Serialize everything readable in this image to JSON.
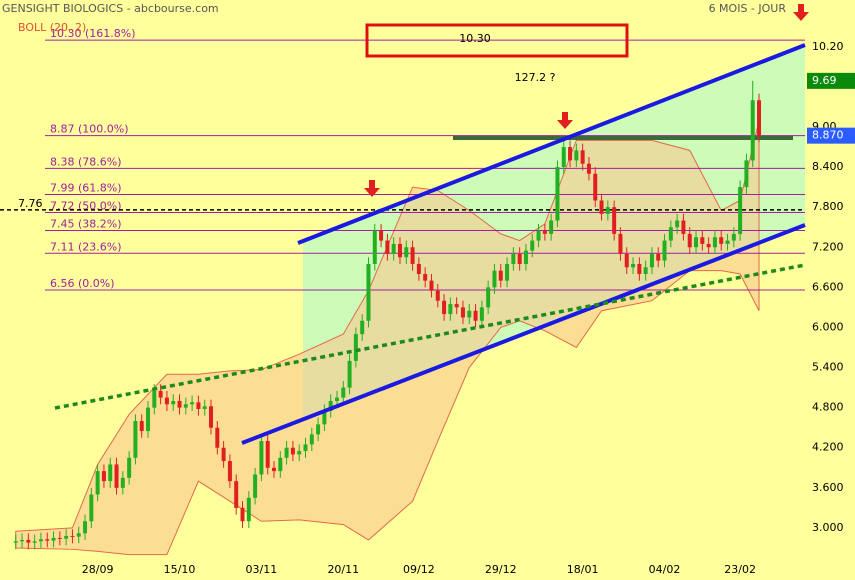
{
  "chart_data": {
    "type": "candlestick",
    "title": "GENSIGHT BIOLOGICS - abcbourse.com",
    "indicator": "BOLL (20, 2)",
    "period": "6 MOIS - JOUR",
    "box_annotation": "10.30",
    "question_annotation": "127.2 ?",
    "up_color": "#22b022",
    "down_color": "#e02020",
    "xlim": [
      -2.5,
      125.3
    ],
    "ylim": [
      2.55,
      10.9
    ],
    "xticks": [
      {
        "value": 13,
        "label": "28/09"
      },
      {
        "value": 26,
        "label": "15/10"
      },
      {
        "value": 39,
        "label": "03/11"
      },
      {
        "value": 52,
        "label": "20/11"
      },
      {
        "value": 64,
        "label": "09/12"
      },
      {
        "value": 77,
        "label": "29/12"
      },
      {
        "value": 90,
        "label": "18/01"
      },
      {
        "value": 103,
        "label": "04/02"
      },
      {
        "value": 115,
        "label": "23/02"
      }
    ],
    "yticks": [
      {
        "value": 3,
        "label": "3.000"
      },
      {
        "value": 3.6,
        "label": "3.600"
      },
      {
        "value": 4.2,
        "label": "4.200"
      },
      {
        "value": 4.8,
        "label": "4.800"
      },
      {
        "value": 5.4,
        "label": "5.400"
      },
      {
        "value": 6,
        "label": "6.000"
      },
      {
        "value": 6.6,
        "label": "6.600"
      },
      {
        "value": 7.2,
        "label": "7.200"
      },
      {
        "value": 7.8,
        "label": "7.800"
      },
      {
        "value": 8.4,
        "label": "8.400"
      },
      {
        "value": 9,
        "label": "9.00"
      },
      {
        "value": 10.2,
        "label": "10.20"
      }
    ],
    "open": [
      2.78,
      2.8,
      2.82,
      2.78,
      2.8,
      2.83,
      2.81,
      2.85,
      2.84,
      2.88,
      2.87,
      2.92,
      3.1,
      3.5,
      3.85,
      3.7,
      3.95,
      3.6,
      3.75,
      4.05,
      4.6,
      4.45,
      4.8,
      5.05,
      4.95,
      4.85,
      4.9,
      4.8,
      4.85,
      4.88,
      4.78,
      4.82,
      4.5,
      4.2,
      4.0,
      3.7,
      3.3,
      3.1,
      3.45,
      3.8,
      4.3,
      3.9,
      3.85,
      4.05,
      4.2,
      4.1,
      4.15,
      4.25,
      4.4,
      4.55,
      4.75,
      4.9,
      4.95,
      5.1,
      5.5,
      5.9,
      6.1,
      6.95,
      7.45,
      7.3,
      7.1,
      7.25,
      7.05,
      7.2,
      6.95,
      6.8,
      6.7,
      6.55,
      6.4,
      6.2,
      6.35,
      6.3,
      6.15,
      6.25,
      6.1,
      6.3,
      6.6,
      6.85,
      6.7,
      6.95,
      7.1,
      6.95,
      7.15,
      7.3,
      7.45,
      7.4,
      7.6,
      8.4,
      8.7,
      8.5,
      8.65,
      8.45,
      8.3,
      7.9,
      7.7,
      7.8,
      7.4,
      7.1,
      6.9,
      6.95,
      6.8,
      6.9,
      7.1,
      7.0,
      7.3,
      7.5,
      7.6,
      7.4,
      7.2,
      7.35,
      7.25,
      7.2,
      7.35,
      7.25,
      7.3,
      7.4,
      8.1,
      8.5,
      9.4
    ],
    "high": [
      2.9,
      2.92,
      2.92,
      2.9,
      2.93,
      2.93,
      2.95,
      2.95,
      2.98,
      2.98,
      3.02,
      3.2,
      3.6,
      3.95,
      3.95,
      4.05,
      4.05,
      3.85,
      4.15,
      4.7,
      4.7,
      4.9,
      5.15,
      5.15,
      5.05,
      5.0,
      5.0,
      4.95,
      4.98,
      4.98,
      4.92,
      4.92,
      4.6,
      4.3,
      4.1,
      3.8,
      3.4,
      3.55,
      3.9,
      4.4,
      4.4,
      4.0,
      4.15,
      4.3,
      4.3,
      4.25,
      4.35,
      4.5,
      4.65,
      4.85,
      5.0,
      5.05,
      5.2,
      5.6,
      6.0,
      6.2,
      7.05,
      7.55,
      7.55,
      7.4,
      7.35,
      7.35,
      7.3,
      7.3,
      7.05,
      6.9,
      6.8,
      6.65,
      6.5,
      6.45,
      6.45,
      6.4,
      6.35,
      6.35,
      6.4,
      6.7,
      6.95,
      6.95,
      7.05,
      7.2,
      7.2,
      7.25,
      7.4,
      7.55,
      7.55,
      7.7,
      8.5,
      8.8,
      8.8,
      8.75,
      8.75,
      8.55,
      8.4,
      8.0,
      7.9,
      7.9,
      7.5,
      7.2,
      7.05,
      7.05,
      7.0,
      7.2,
      7.2,
      7.4,
      7.6,
      7.7,
      7.7,
      7.5,
      7.45,
      7.45,
      7.35,
      7.45,
      7.45,
      7.4,
      7.5,
      8.2,
      8.6,
      9.69,
      9.5
    ],
    "low": [
      2.68,
      2.7,
      2.68,
      2.68,
      2.7,
      2.71,
      2.71,
      2.74,
      2.74,
      2.77,
      2.77,
      2.82,
      3.0,
      3.4,
      3.6,
      3.6,
      3.5,
      3.5,
      3.65,
      3.95,
      4.35,
      4.35,
      4.7,
      4.85,
      4.75,
      4.75,
      4.7,
      4.7,
      4.75,
      4.68,
      4.68,
      4.4,
      4.1,
      3.9,
      3.6,
      3.2,
      3.0,
      3.0,
      3.35,
      3.7,
      3.8,
      3.75,
      3.75,
      3.95,
      4.0,
      4.0,
      4.05,
      4.15,
      4.3,
      4.45,
      4.65,
      4.8,
      4.85,
      5.0,
      5.4,
      5.8,
      6.0,
      6.85,
      7.2,
      7.0,
      7.0,
      6.95,
      6.95,
      6.85,
      6.7,
      6.6,
      6.45,
      6.3,
      6.1,
      6.1,
      6.2,
      6.05,
      6.05,
      6.0,
      6.0,
      6.2,
      6.5,
      6.6,
      6.6,
      6.85,
      6.85,
      6.85,
      7.05,
      7.2,
      7.3,
      7.3,
      7.5,
      8.3,
      8.4,
      8.4,
      8.35,
      8.2,
      7.8,
      7.6,
      7.6,
      7.3,
      7.0,
      6.8,
      6.8,
      6.7,
      6.7,
      6.8,
      6.9,
      6.9,
      7.2,
      7.4,
      7.3,
      7.1,
      7.1,
      7.15,
      7.1,
      7.1,
      7.15,
      7.15,
      7.2,
      7.3,
      8.0,
      8.4,
      8.77
    ],
    "close": [
      2.8,
      2.82,
      2.78,
      2.8,
      2.83,
      2.81,
      2.85,
      2.84,
      2.88,
      2.87,
      2.92,
      3.1,
      3.5,
      3.85,
      3.7,
      3.95,
      3.6,
      3.75,
      4.05,
      4.6,
      4.45,
      4.8,
      5.05,
      4.95,
      4.85,
      4.9,
      4.8,
      4.85,
      4.88,
      4.78,
      4.82,
      4.5,
      4.2,
      4.0,
      3.7,
      3.3,
      3.1,
      3.45,
      3.8,
      4.3,
      3.9,
      3.85,
      4.05,
      4.2,
      4.1,
      4.15,
      4.25,
      4.4,
      4.55,
      4.75,
      4.9,
      4.95,
      5.1,
      5.5,
      5.9,
      6.1,
      6.95,
      7.45,
      7.3,
      7.1,
      7.25,
      7.05,
      7.2,
      6.95,
      6.8,
      6.7,
      6.55,
      6.4,
      6.2,
      6.35,
      6.3,
      6.15,
      6.25,
      6.1,
      6.3,
      6.6,
      6.85,
      6.7,
      6.95,
      7.1,
      6.95,
      7.15,
      7.3,
      7.45,
      7.4,
      7.6,
      8.4,
      8.7,
      8.5,
      8.65,
      8.45,
      8.3,
      7.9,
      7.7,
      7.8,
      7.4,
      7.1,
      6.9,
      6.95,
      6.8,
      6.9,
      7.1,
      7.0,
      7.3,
      7.5,
      7.6,
      7.4,
      7.2,
      7.35,
      7.25,
      7.2,
      7.35,
      7.25,
      7.3,
      7.4,
      8.1,
      8.5,
      9.4,
      8.87
    ],
    "bollinger": {
      "color": "#f8c890",
      "line_color": "#e06a4a",
      "x": [
        0,
        9,
        13,
        18,
        24,
        29,
        34,
        39,
        45,
        52,
        56,
        63,
        67,
        72,
        77,
        80,
        84,
        89,
        93,
        101,
        107,
        112,
        115,
        118
      ],
      "upper": [
        2.95,
        3.0,
        3.95,
        4.7,
        5.3,
        5.3,
        5.35,
        5.37,
        5.6,
        5.9,
        6.55,
        8.1,
        8.05,
        7.75,
        7.4,
        7.3,
        7.55,
        8.8,
        8.8,
        8.8,
        8.65,
        7.75,
        7.9,
        9.1
      ],
      "lower": [
        2.7,
        2.68,
        2.65,
        2.6,
        2.6,
        3.7,
        3.4,
        3.1,
        3.12,
        3.05,
        2.82,
        3.4,
        4.3,
        5.4,
        6.0,
        6.1,
        5.95,
        5.7,
        6.25,
        6.4,
        6.85,
        6.85,
        6.8,
        6.25
      ]
    },
    "fib_color": "#a020a0",
    "fibonacci": [
      {
        "value": 10.3,
        "label": "10.30 (161.8%)"
      },
      {
        "value": 8.87,
        "label": "8.87 (100.0%)"
      },
      {
        "value": 8.38,
        "label": "8.38 (78.6%)"
      },
      {
        "value": 7.99,
        "label": "7.99 (61.8%)"
      },
      {
        "value": 7.72,
        "label": "7.72 (50.0%)"
      },
      {
        "value": 7.45,
        "label": "7.45 (38.2%)"
      },
      {
        "value": 7.11,
        "label": "7.11 (23.6%)"
      },
      {
        "value": 6.56,
        "label": "6.56 (0.0%)"
      }
    ],
    "reference_line": {
      "value": 7.76
    },
    "price_tags": [
      {
        "value": 9.69,
        "color": "#0a8a0a"
      },
      {
        "value": 8.87,
        "label": "8.870",
        "color": "#2a5cff"
      }
    ]
  }
}
